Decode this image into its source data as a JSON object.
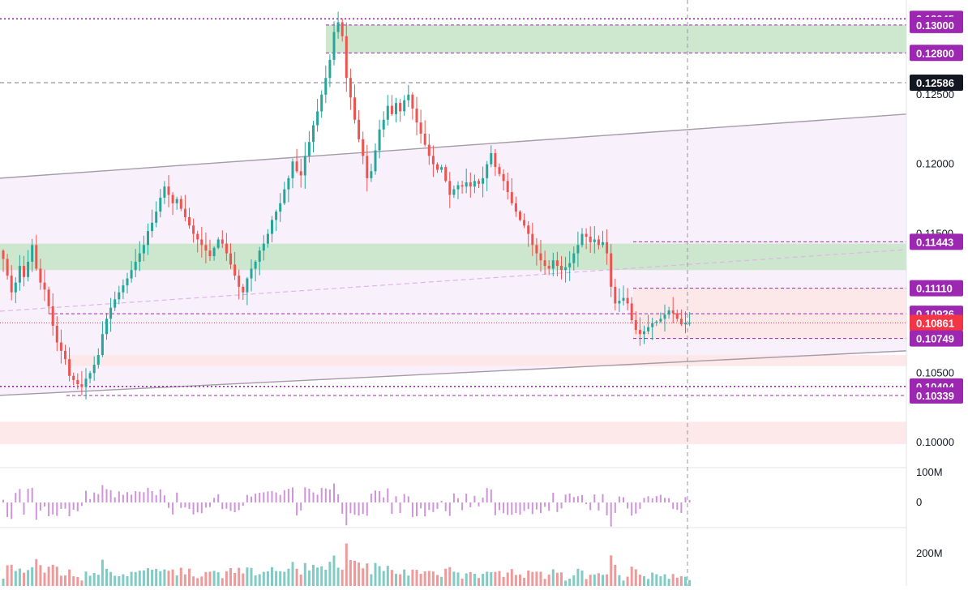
{
  "chart_data": {
    "type": "candlestick",
    "price_axis": {
      "ticks": [
        "0.12500",
        "0.12000",
        "0.11500",
        "0.10500",
        "0.10000"
      ],
      "range": [
        0.0985,
        0.1318
      ]
    },
    "level_tags": [
      {
        "label": "0.13045",
        "value": 0.13045,
        "color": "#9c27b0",
        "line": "dotted"
      },
      {
        "label": "0.13000",
        "value": 0.13,
        "color": "#9c27b0",
        "line": "dashed"
      },
      {
        "label": "0.12800",
        "value": 0.128,
        "color": "#9c27b0",
        "line": "dashed"
      },
      {
        "label": "0.12586",
        "value": 0.12586,
        "color": "#131722",
        "line": "crosshair"
      },
      {
        "label": "0.11443",
        "value": 0.11443,
        "color": "#9c27b0",
        "line": "dashed"
      },
      {
        "label": "0.11110",
        "value": 0.1111,
        "color": "#9c27b0",
        "line": "dashed"
      },
      {
        "label": "0.10926",
        "value": 0.10926,
        "color": "#9c27b0",
        "line": "dashed"
      },
      {
        "label": "0.10861",
        "value": 0.10861,
        "color": "#f23645",
        "line": "last-price"
      },
      {
        "label": "0.10749",
        "value": 0.10749,
        "color": "#9c27b0",
        "line": "dashed"
      },
      {
        "label": "0.10404",
        "value": 0.10404,
        "color": "#9c27b0",
        "line": "dotted"
      },
      {
        "label": "0.10339",
        "value": 0.10339,
        "color": "#9c27b0",
        "line": "dashed"
      }
    ],
    "zones": [
      {
        "kind": "supply",
        "from": 0.128,
        "to": 0.13,
        "color": "#c8e6c9"
      },
      {
        "kind": "support",
        "from": 0.1124,
        "to": 0.1143,
        "color": "#c8e6c9"
      },
      {
        "kind": "range",
        "from": 0.10749,
        "to": 0.1111,
        "color": "#fde7e7"
      },
      {
        "kind": "band",
        "from": 0.1055,
        "to": 0.1063,
        "color": "#fde7e7"
      },
      {
        "kind": "band",
        "from": 0.0999,
        "to": 0.1015,
        "color": "#fde7e7"
      }
    ],
    "channel": {
      "upper": [
        0.119,
        0.1236
      ],
      "lower": [
        0.1034,
        0.1066
      ]
    },
    "price_series": [
      0.1132,
      0.112,
      0.1108,
      0.1115,
      0.1127,
      0.1119,
      0.113,
      0.1142,
      0.1125,
      0.1115,
      0.111,
      0.1098,
      0.1084,
      0.1072,
      0.1066,
      0.106,
      0.1048,
      0.1045,
      0.1042,
      0.104,
      0.1046,
      0.105,
      0.1056,
      0.1063,
      0.1078,
      0.1089,
      0.1097,
      0.1103,
      0.1108,
      0.1113,
      0.1118,
      0.1124,
      0.113,
      0.1136,
      0.1142,
      0.1152,
      0.1158,
      0.1166,
      0.1176,
      0.1184,
      0.1178,
      0.1172,
      0.1175,
      0.1168,
      0.1162,
      0.1156,
      0.115,
      0.1146,
      0.1142,
      0.1138,
      0.1134,
      0.114,
      0.1146,
      0.1143,
      0.1136,
      0.1128,
      0.112,
      0.1112,
      0.1108,
      0.1118,
      0.1125,
      0.113,
      0.1138,
      0.1143,
      0.115,
      0.116,
      0.1166,
      0.1172,
      0.1182,
      0.119,
      0.1202,
      0.1195,
      0.1192,
      0.1206,
      0.1216,
      0.1228,
      0.1238,
      0.125,
      0.1262,
      0.1275,
      0.1295,
      0.1302,
      0.1292,
      0.1262,
      0.1248,
      0.1232,
      0.1218,
      0.1206,
      0.119,
      0.1195,
      0.121,
      0.1225,
      0.1232,
      0.1242,
      0.1236,
      0.1244,
      0.1238,
      0.1246,
      0.125,
      0.124,
      0.123,
      0.1222,
      0.1214,
      0.1206,
      0.12,
      0.1196,
      0.1198,
      0.1188,
      0.1178,
      0.1182,
      0.1185,
      0.1184,
      0.1187,
      0.1184,
      0.1188,
      0.1186,
      0.119,
      0.12,
      0.1208,
      0.1198,
      0.1193,
      0.1188,
      0.118,
      0.1172,
      0.1166,
      0.116,
      0.1156,
      0.115,
      0.1142,
      0.1136,
      0.1131,
      0.1127,
      0.1125,
      0.1131,
      0.1127,
      0.1124,
      0.1126,
      0.1129,
      0.1136,
      0.1142,
      0.115,
      0.1148,
      0.1144,
      0.1146,
      0.1142,
      0.1144,
      0.1136,
      0.1112,
      0.11,
      0.1102,
      0.1104,
      0.11,
      0.1088,
      0.1081,
      0.1078,
      0.108,
      0.1083,
      0.1086,
      0.1087,
      0.1089,
      0.1092,
      0.1095,
      0.1093,
      0.1089,
      0.1085,
      0.1086,
      0.1086
    ],
    "volume_axis": {
      "label": "200M"
    },
    "delta_axis": {
      "labels": [
        "100M",
        "0"
      ]
    },
    "crosshair_time_index": 151
  }
}
